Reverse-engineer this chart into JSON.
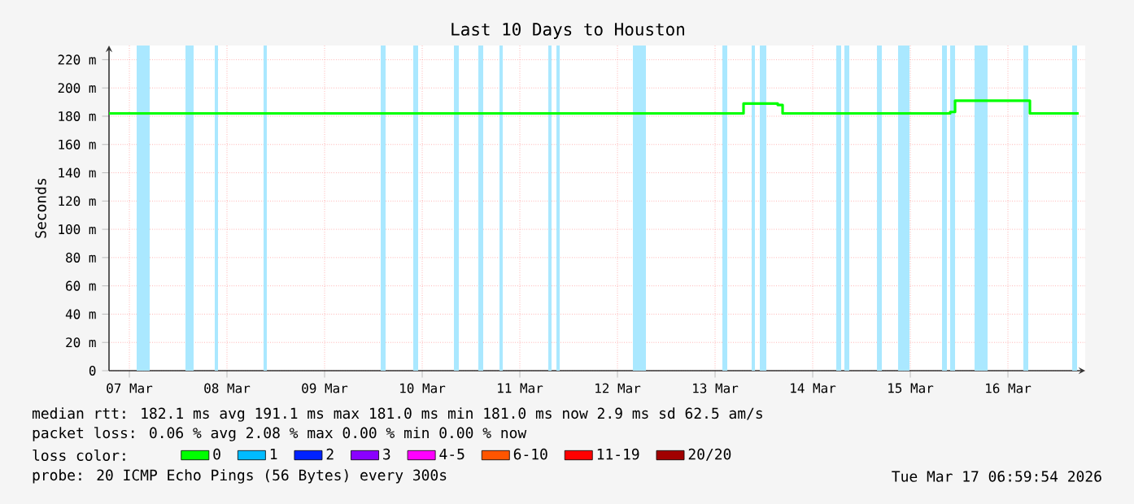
{
  "chart_data": {
    "type": "step",
    "title": "Last 10 Days to Houston",
    "ylabel": "Seconds",
    "xlim": [
      "2026-03-07T07:00",
      "2026-03-17T07:00"
    ],
    "xticks": [
      {
        "value": "2026-03-07T12:00",
        "label": "07 Mar"
      },
      {
        "value": "2026-03-08T12:00",
        "label": "08 Mar"
      },
      {
        "value": "2026-03-09T12:00",
        "label": "09 Mar"
      },
      {
        "value": "2026-03-10T12:00",
        "label": "10 Mar"
      },
      {
        "value": "2026-03-11T12:00",
        "label": "11 Mar"
      },
      {
        "value": "2026-03-12T12:00",
        "label": "12 Mar"
      },
      {
        "value": "2026-03-13T12:00",
        "label": "13 Mar"
      },
      {
        "value": "2026-03-14T12:00",
        "label": "14 Mar"
      },
      {
        "value": "2026-03-15T12:00",
        "label": "15 Mar"
      },
      {
        "value": "2026-03-16T12:00",
        "label": "16 Mar"
      }
    ],
    "ylim": [
      0,
      230
    ],
    "yticks": [
      {
        "value": 0,
        "label": "0"
      },
      {
        "value": 20,
        "label": "20 m"
      },
      {
        "value": 40,
        "label": "40 m"
      },
      {
        "value": 60,
        "label": "60 m"
      },
      {
        "value": 80,
        "label": "80 m"
      },
      {
        "value": 100,
        "label": "100 m"
      },
      {
        "value": 120,
        "label": "120 m"
      },
      {
        "value": 140,
        "label": "140 m"
      },
      {
        "value": 160,
        "label": "160 m"
      },
      {
        "value": 180,
        "label": "180 m"
      },
      {
        "value": 200,
        "label": "200 m"
      },
      {
        "value": 220,
        "label": "220 m"
      }
    ],
    "grid": true,
    "legend": "bottom",
    "legend_title": "loss color:",
    "series": [
      {
        "name": "0",
        "color": "#00ff00",
        "x": [
          "2026-03-07T07:00",
          "2026-03-13T19:00",
          "2026-03-14T03:24",
          "2026-03-14T04:36",
          "2026-03-15T21:48",
          "2026-03-15T23:00",
          "2026-03-16T17:24",
          "2026-03-17T05:24"
        ],
        "values": [
          182,
          189,
          188,
          182,
          183,
          191,
          182,
          182
        ]
      },
      {
        "name": "1",
        "color": "#00bbff"
      },
      {
        "name": "2",
        "color": "#0022ff"
      },
      {
        "name": "3",
        "color": "#8a00ff"
      },
      {
        "name": "4-5",
        "color": "#ff00ff"
      },
      {
        "name": "6-10",
        "color": "#ff5500"
      },
      {
        "name": "11-19",
        "color": "#ff0000"
      },
      {
        "name": "20/20",
        "color": "#a10000"
      }
    ],
    "bands": [
      {
        "axis": "x",
        "from": "2026-03-07T13:48",
        "to": "2026-03-07T17:00",
        "color": "#aae8ff"
      },
      {
        "axis": "x",
        "from": "2026-03-08T01:48",
        "to": "2026-03-08T03:48",
        "color": "#aae8ff"
      },
      {
        "axis": "x",
        "from": "2026-03-08T09:00",
        "to": "2026-03-08T09:48",
        "color": "#aae8ff"
      },
      {
        "axis": "x",
        "from": "2026-03-08T21:00",
        "to": "2026-03-08T21:48",
        "color": "#aae8ff"
      },
      {
        "axis": "x",
        "from": "2026-03-10T01:48",
        "to": "2026-03-10T03:00",
        "color": "#aae8ff"
      },
      {
        "axis": "x",
        "from": "2026-03-10T09:48",
        "to": "2026-03-10T11:00",
        "color": "#aae8ff"
      },
      {
        "axis": "x",
        "from": "2026-03-10T19:48",
        "to": "2026-03-10T21:00",
        "color": "#aae8ff"
      },
      {
        "axis": "x",
        "from": "2026-03-11T01:48",
        "to": "2026-03-11T03:00",
        "color": "#aae8ff"
      },
      {
        "axis": "x",
        "from": "2026-03-11T07:00",
        "to": "2026-03-11T07:48",
        "color": "#aae8ff"
      },
      {
        "axis": "x",
        "from": "2026-03-11T19:00",
        "to": "2026-03-11T19:48",
        "color": "#aae8ff"
      },
      {
        "axis": "x",
        "from": "2026-03-11T21:00",
        "to": "2026-03-11T21:48",
        "color": "#aae8ff"
      },
      {
        "axis": "x",
        "from": "2026-03-12T15:48",
        "to": "2026-03-12T19:00",
        "color": "#aae8ff"
      },
      {
        "axis": "x",
        "from": "2026-03-13T13:48",
        "to": "2026-03-13T15:00",
        "color": "#aae8ff"
      },
      {
        "axis": "x",
        "from": "2026-03-13T21:00",
        "to": "2026-03-13T21:48",
        "color": "#aae8ff"
      },
      {
        "axis": "x",
        "from": "2026-03-13T23:00",
        "to": "2026-03-14T00:36",
        "color": "#aae8ff"
      },
      {
        "axis": "x",
        "from": "2026-03-14T17:48",
        "to": "2026-03-14T19:00",
        "color": "#aae8ff"
      },
      {
        "axis": "x",
        "from": "2026-03-14T19:48",
        "to": "2026-03-14T21:00",
        "color": "#aae8ff"
      },
      {
        "axis": "x",
        "from": "2026-03-15T03:48",
        "to": "2026-03-15T05:00",
        "color": "#aae8ff"
      },
      {
        "axis": "x",
        "from": "2026-03-15T09:00",
        "to": "2026-03-15T11:48",
        "color": "#aae8ff"
      },
      {
        "axis": "x",
        "from": "2026-03-15T19:48",
        "to": "2026-03-15T21:00",
        "color": "#aae8ff"
      },
      {
        "axis": "x",
        "from": "2026-03-15T21:48",
        "to": "2026-03-15T23:00",
        "color": "#aae8ff"
      },
      {
        "axis": "x",
        "from": "2026-03-16T03:48",
        "to": "2026-03-16T07:00",
        "color": "#aae8ff"
      },
      {
        "axis": "x",
        "from": "2026-03-16T15:48",
        "to": "2026-03-16T17:00",
        "color": "#aae8ff"
      },
      {
        "axis": "x",
        "from": "2026-03-17T03:48",
        "to": "2026-03-17T05:00",
        "color": "#aae8ff"
      }
    ],
    "annotations": [
      "median rtt: 182.1 ms avg 191.1 ms max 181.0 ms min 181.0 ms now 2.9 ms sd 62.5 am/s",
      "packet loss: 0.06 % avg 2.08 % max 0.00 % min 0.00 % now",
      "probe: 20 ICMP Echo Pings (56 Bytes) every 300s",
      "Tue Mar 17 06:59:54 2026"
    ]
  }
}
